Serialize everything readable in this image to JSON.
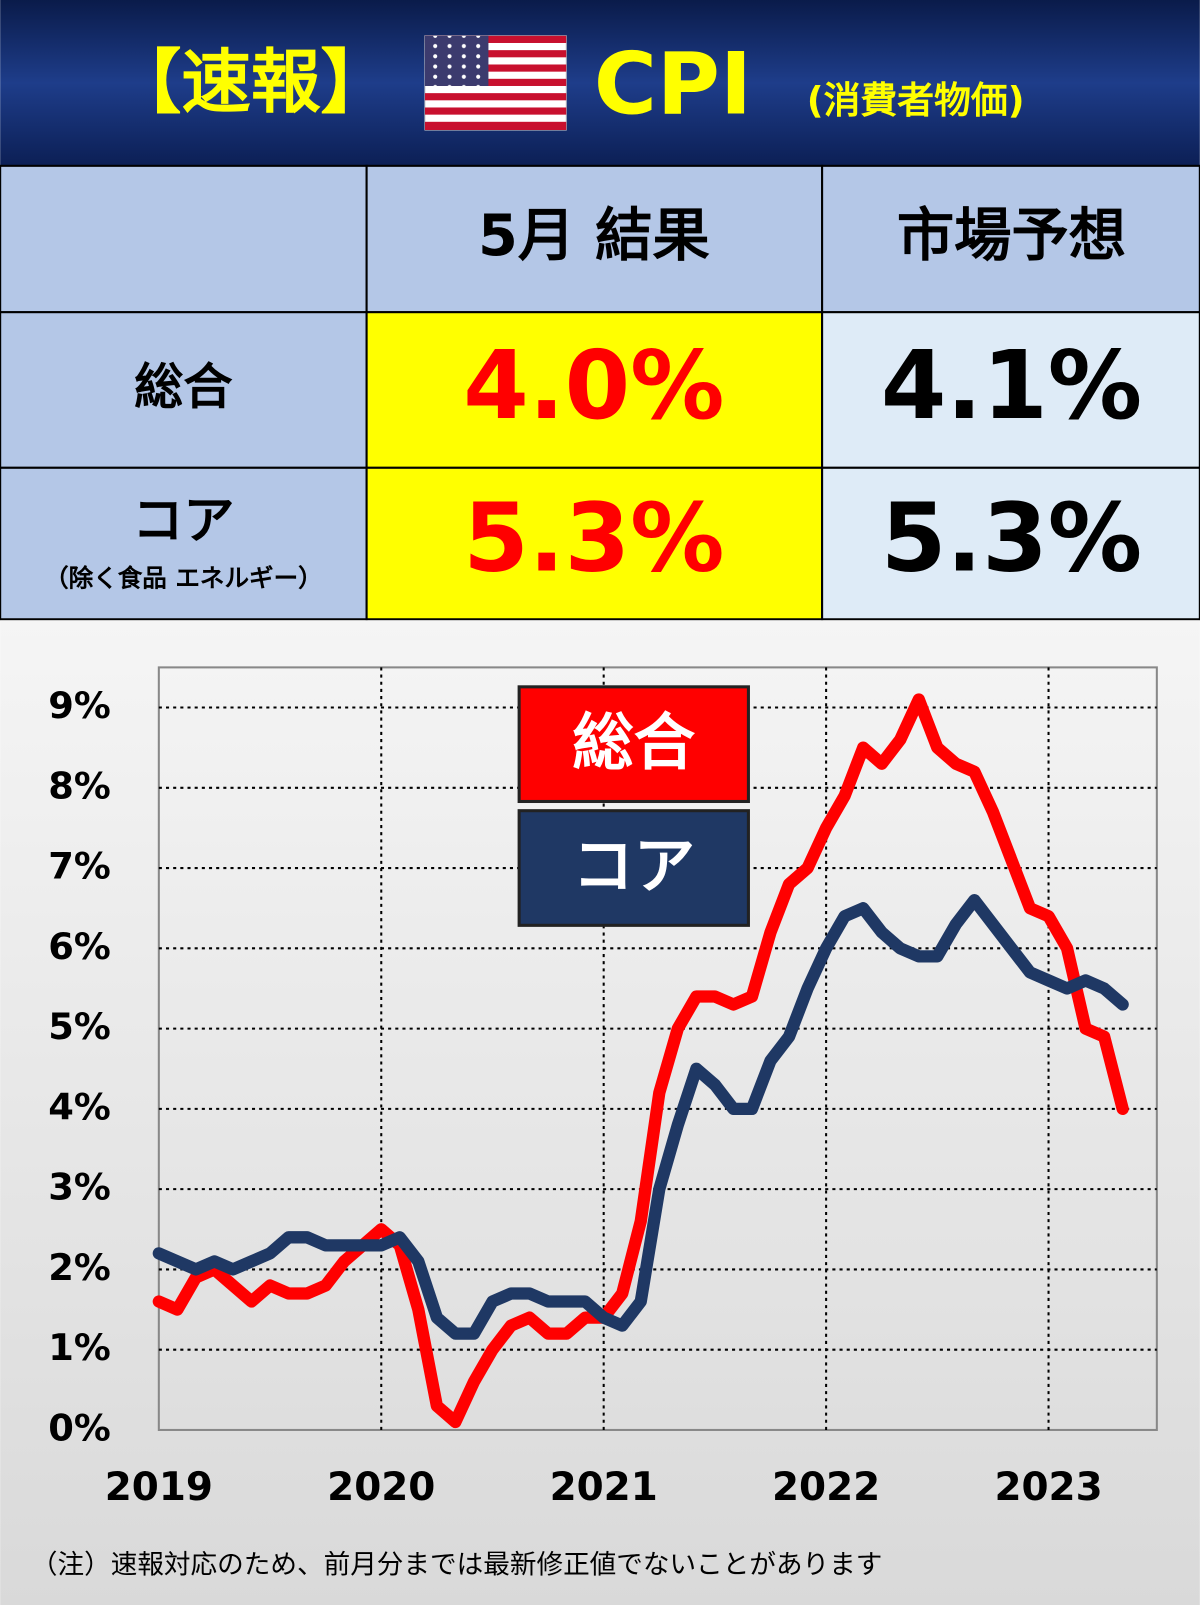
{
  "header": {
    "title": "【速報】",
    "subject": "CPI",
    "subtitle": "(消費者物価)"
  },
  "table": {
    "columns": [
      "5月 結果",
      "市場予想"
    ],
    "rows": [
      {
        "label": "総合",
        "result": "4.0%",
        "forecast": "4.1%"
      },
      {
        "label": "コア",
        "sublabel": "（除く食品 エネルギー）",
        "result": "5.3%",
        "forecast": "5.3%"
      }
    ]
  },
  "chart_data": {
    "type": "line",
    "categories": [
      "2019",
      null,
      null,
      null,
      null,
      null,
      null,
      null,
      null,
      null,
      null,
      null,
      "2020",
      null,
      null,
      null,
      null,
      null,
      null,
      null,
      null,
      null,
      null,
      null,
      "2021",
      null,
      null,
      null,
      null,
      null,
      null,
      null,
      null,
      null,
      null,
      null,
      "2022",
      null,
      null,
      null,
      null,
      null,
      null,
      null,
      null,
      null,
      null,
      null,
      "2023",
      null,
      null,
      null,
      null
    ],
    "series": [
      {
        "name": "総合",
        "color": "#ff0000",
        "values": [
          1.6,
          1.5,
          1.9,
          2.0,
          1.8,
          1.6,
          1.8,
          1.7,
          1.7,
          1.8,
          2.1,
          2.3,
          2.5,
          2.3,
          1.5,
          0.3,
          0.1,
          0.6,
          1.0,
          1.3,
          1.4,
          1.2,
          1.2,
          1.4,
          1.4,
          1.7,
          2.6,
          4.2,
          5.0,
          5.4,
          5.4,
          5.3,
          5.4,
          6.2,
          6.8,
          7.0,
          7.5,
          7.9,
          8.5,
          8.3,
          8.6,
          9.1,
          8.5,
          8.3,
          8.2,
          7.7,
          7.1,
          6.5,
          6.4,
          6.0,
          5.0,
          4.9,
          4.0
        ]
      },
      {
        "name": "コア",
        "color": "#1f3864",
        "values": [
          2.2,
          2.1,
          2.0,
          2.1,
          2.0,
          2.1,
          2.2,
          2.4,
          2.4,
          2.3,
          2.3,
          2.3,
          2.3,
          2.4,
          2.1,
          1.4,
          1.2,
          1.2,
          1.6,
          1.7,
          1.7,
          1.6,
          1.6,
          1.6,
          1.4,
          1.3,
          1.6,
          3.0,
          3.8,
          4.5,
          4.3,
          4.0,
          4.0,
          4.6,
          4.9,
          5.5,
          6.0,
          6.4,
          6.5,
          6.2,
          6.0,
          5.9,
          5.9,
          6.3,
          6.6,
          6.3,
          6.0,
          5.7,
          5.6,
          5.5,
          5.6,
          5.5,
          5.3
        ]
      }
    ],
    "ylim": [
      0,
      9.5
    ],
    "yticks": [
      {
        "value": 0,
        "label": "0%"
      },
      {
        "value": 1,
        "label": "1%"
      },
      {
        "value": 2,
        "label": "2%"
      },
      {
        "value": 3,
        "label": "3%"
      },
      {
        "value": 4,
        "label": "4%"
      },
      {
        "value": 5,
        "label": "5%"
      },
      {
        "value": 6,
        "label": "6%"
      },
      {
        "value": 7,
        "label": "7%"
      },
      {
        "value": 8,
        "label": "8%"
      },
      {
        "value": 9,
        "label": "9%"
      }
    ],
    "grid": true,
    "note": "（注）速報対応のため、前月分までは最新修正値でないことがあります"
  }
}
